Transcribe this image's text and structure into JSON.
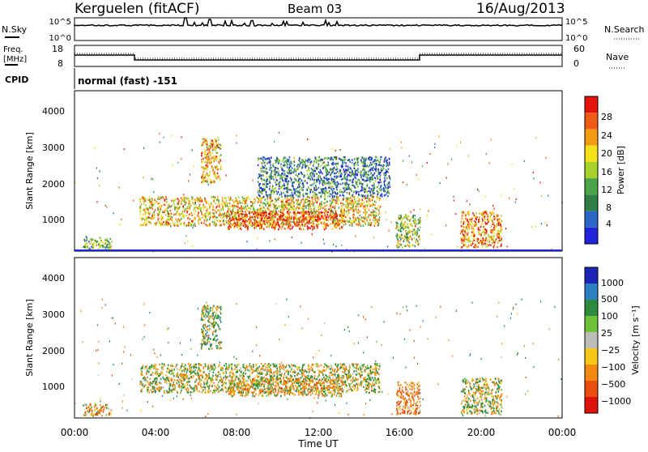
{
  "header": {
    "title": "Kerguelen (fitACF)",
    "beam": "Beam 03",
    "date": "16/Aug/2013"
  },
  "noise_panel": {
    "left_label": "N.Sky",
    "right_label": "N.Search",
    "left_ticks": [
      "10^5",
      "10^0"
    ],
    "right_ticks": [
      "10^5",
      "10^0"
    ]
  },
  "freq_panel": {
    "left_label_top": "Freq.",
    "left_label_bottom": "[MHz]",
    "right_label": "Nave",
    "left_ticks": [
      "18",
      "8"
    ],
    "right_ticks": [
      "60",
      "0"
    ]
  },
  "cpid": {
    "label": "CPID",
    "value": "normal (fast) -151"
  },
  "colors": {
    "power": [
      "#1f23d9",
      "#2a66c8",
      "#2f7f45",
      "#4aa24a",
      "#a6d22b",
      "#f3e11a",
      "#f39c12",
      "#ef5a14",
      "#e4140c"
    ],
    "velocity": [
      "#1a25b5",
      "#2f7fc4",
      "#2e8a3e",
      "#6fc33a",
      "#bdbdb7",
      "#f7c815",
      "#f28a12",
      "#ea4f10",
      "#e0120c"
    ],
    "gray": "#bdbdb7"
  },
  "chart_data": [
    {
      "type": "heatmap",
      "name": "power-panel",
      "ylabel": "Slant Range [km]",
      "yticks": [
        "1000",
        "2000",
        "3000",
        "4000"
      ],
      "ylim": [
        180,
        4600
      ],
      "xlim": [
        0,
        24
      ],
      "colorbar": {
        "label": "Power [dB]",
        "ticks": [
          "4",
          "8",
          "12",
          "16",
          "20",
          "24",
          "28"
        ],
        "range": [
          0,
          32
        ]
      },
      "regions": [
        {
          "t0": 3.2,
          "t1": 15.0,
          "r0": 900,
          "r1": 1700,
          "value": 20
        },
        {
          "t0": 7.5,
          "t1": 13.2,
          "r0": 800,
          "r1": 1300,
          "value": 28
        },
        {
          "t0": 6.2,
          "t1": 7.2,
          "r0": 2100,
          "r1": 3300,
          "value": 22
        },
        {
          "t0": 9.0,
          "t1": 15.5,
          "r0": 1700,
          "r1": 2800,
          "value": 8
        },
        {
          "t0": 0.4,
          "t1": 1.8,
          "r0": 250,
          "r1": 600,
          "value": 14
        },
        {
          "t0": 15.8,
          "t1": 17.0,
          "r0": 300,
          "r1": 1200,
          "value": 16
        },
        {
          "t0": 19.0,
          "t1": 21.0,
          "r0": 300,
          "r1": 1300,
          "value": 24
        }
      ]
    },
    {
      "type": "heatmap",
      "name": "velocity-panel",
      "ylabel": "Slant Range [km]",
      "yticks": [
        "1000",
        "2000",
        "3000",
        "4000"
      ],
      "ylim": [
        180,
        4600
      ],
      "xlim": [
        0,
        24
      ],
      "xlabel": "Time UT",
      "xticks": [
        "00:00",
        "04:00",
        "08:00",
        "12:00",
        "16:00",
        "20:00",
        "00:00"
      ],
      "colorbar": {
        "label": "Velocity [m s⁻¹]",
        "ticks": [
          "1000",
          "500",
          "100",
          "25",
          "−25",
          "−100",
          "−500",
          "−1000"
        ],
        "range": [
          -1200,
          1200
        ]
      },
      "regions": [
        {
          "t0": 3.2,
          "t1": 15.0,
          "r0": 900,
          "r1": 1700,
          "value": 0
        },
        {
          "t0": 7.5,
          "t1": 13.2,
          "r0": 800,
          "r1": 1300,
          "value": -200
        },
        {
          "t0": 6.2,
          "t1": 7.2,
          "r0": 2100,
          "r1": 3300,
          "value": 150
        },
        {
          "t0": 0.4,
          "t1": 1.8,
          "r0": 250,
          "r1": 600,
          "value": -300
        },
        {
          "t0": 15.8,
          "t1": 17.0,
          "r0": 300,
          "r1": 1200,
          "value": -400
        },
        {
          "t0": 19.0,
          "t1": 21.0,
          "r0": 300,
          "r1": 1300,
          "value": 0
        }
      ]
    }
  ]
}
